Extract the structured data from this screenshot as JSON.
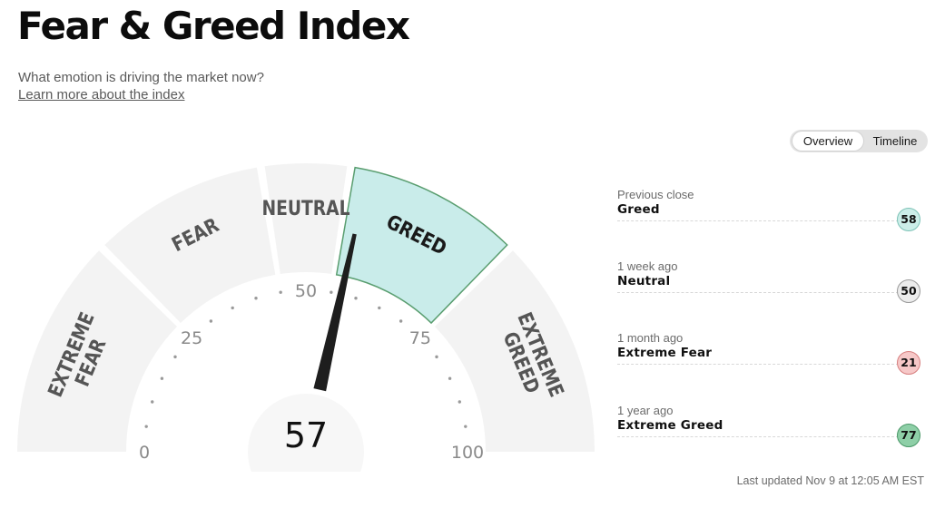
{
  "header": {
    "title": "Fear & Greed Index",
    "subtitle": "What emotion is driving the market now?",
    "learn_more": "Learn more about the index"
  },
  "view_toggle": {
    "options": [
      "Overview",
      "Timeline"
    ],
    "selected": "Overview"
  },
  "gauge": {
    "value": 57,
    "min": 0,
    "max": 100,
    "segments": [
      {
        "label": "EXTREME FEAR",
        "from": 0,
        "to": 25
      },
      {
        "label": "FEAR",
        "from": 25,
        "to": 45
      },
      {
        "label": "NEUTRAL",
        "from": 45,
        "to": 55
      },
      {
        "label": "GREED",
        "from": 55,
        "to": 75
      },
      {
        "label": "EXTREME GREED",
        "from": 75,
        "to": 100
      }
    ],
    "active_segment": "GREED",
    "ticks": [
      "0",
      "25",
      "50",
      "75",
      "100"
    ]
  },
  "history": [
    {
      "period": "Previous close",
      "label": "Greed",
      "value": "58",
      "fill": "#cceee9",
      "stroke": "#7cc2b6"
    },
    {
      "period": "1 week ago",
      "label": "Neutral",
      "value": "50",
      "fill": "#ececec",
      "stroke": "#9a9a9a"
    },
    {
      "period": "1 month ago",
      "label": "Extreme Fear",
      "value": "21",
      "fill": "#f6c8c8",
      "stroke": "#d77f7f"
    },
    {
      "period": "1 year ago",
      "label": "Extreme Greed",
      "value": "77",
      "fill": "#8ecfa7",
      "stroke": "#4a9868"
    }
  ],
  "last_updated": "Last updated Nov 9 at 12:05 AM EST",
  "colors": {
    "segment": "#f3f3f3",
    "active_fill": "#c9ecea",
    "active_stroke": "#5a9e70",
    "needle": "#1e1e1e"
  }
}
